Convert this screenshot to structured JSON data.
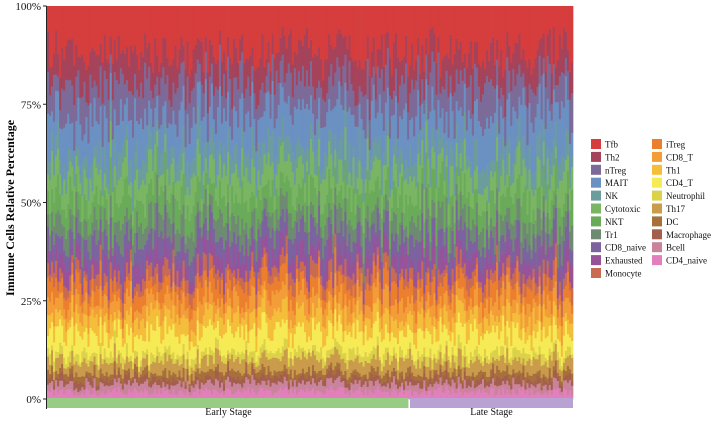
{
  "chart_data": {
    "type": "bar",
    "stacked": true,
    "normalized": true,
    "ylabel": "Immune Cells Relative Percentage",
    "y_ticks": [
      "0%",
      "25%",
      "50%",
      "75%",
      "100%"
    ],
    "ylim": [
      0,
      100
    ],
    "grid": false,
    "legend_position": "right",
    "n_samples": 260,
    "groups": [
      {
        "name": "Early Stage",
        "fraction": 0.69,
        "color": "#98cc85"
      },
      {
        "name": "Late Stage",
        "fraction": 0.31,
        "color": "#b8a2d4"
      }
    ],
    "series_bottom_to_top": [
      {
        "name": "CD4_naive",
        "color": "#e37fbc",
        "mean_pct": 2
      },
      {
        "name": "Bcell",
        "color": "#c9849c",
        "mean_pct": 2
      },
      {
        "name": "Macrophage",
        "color": "#a45e4d",
        "mean_pct": 1.5
      },
      {
        "name": "DC",
        "color": "#a7703b",
        "mean_pct": 1.5
      },
      {
        "name": "Th17",
        "color": "#c99b4b",
        "mean_pct": 3
      },
      {
        "name": "Neutrophil",
        "color": "#dcd24a",
        "mean_pct": 2
      },
      {
        "name": "CD4_T",
        "color": "#f6ea55",
        "mean_pct": 5
      },
      {
        "name": "Th1",
        "color": "#f4be3a",
        "mean_pct": 4
      },
      {
        "name": "CD8_T",
        "color": "#f29d38",
        "mean_pct": 4
      },
      {
        "name": "iTreg",
        "color": "#ec7f2e",
        "mean_pct": 4
      },
      {
        "name": "Monocyte",
        "color": "#c96a53",
        "mean_pct": 3
      },
      {
        "name": "Exhausted",
        "color": "#98529a",
        "mean_pct": 4
      },
      {
        "name": "CD8_naive",
        "color": "#7c629f",
        "mean_pct": 5
      },
      {
        "name": "Tr1",
        "color": "#6f8a73",
        "mean_pct": 5
      },
      {
        "name": "NKT",
        "color": "#6aab5a",
        "mean_pct": 6
      },
      {
        "name": "Cytotoxic",
        "color": "#7ab563",
        "mean_pct": 6
      },
      {
        "name": "NK",
        "color": "#6c9d9c",
        "mean_pct": 5
      },
      {
        "name": "MAIT",
        "color": "#6b91c2",
        "mean_pct": 10
      },
      {
        "name": "nTreg",
        "color": "#7c6a98",
        "mean_pct": 8
      },
      {
        "name": "Th2",
        "color": "#a5435b",
        "mean_pct": 8
      },
      {
        "name": "Tfb",
        "color": "#d63d3d",
        "mean_pct": 12
      }
    ],
    "legend_columns": [
      [
        "Tfb",
        "Th2",
        "nTreg",
        "MAIT",
        "NK",
        "Cytotoxic",
        "NKT",
        "Tr1",
        "CD8_naive",
        "Exhausted",
        "Monocyte"
      ],
      [
        "iTreg",
        "CD8_T",
        "Th1",
        "CD4_T",
        "Neutrophil",
        "Th17",
        "DC",
        "Macrophage",
        "Bcell",
        "CD4_naive"
      ]
    ]
  }
}
